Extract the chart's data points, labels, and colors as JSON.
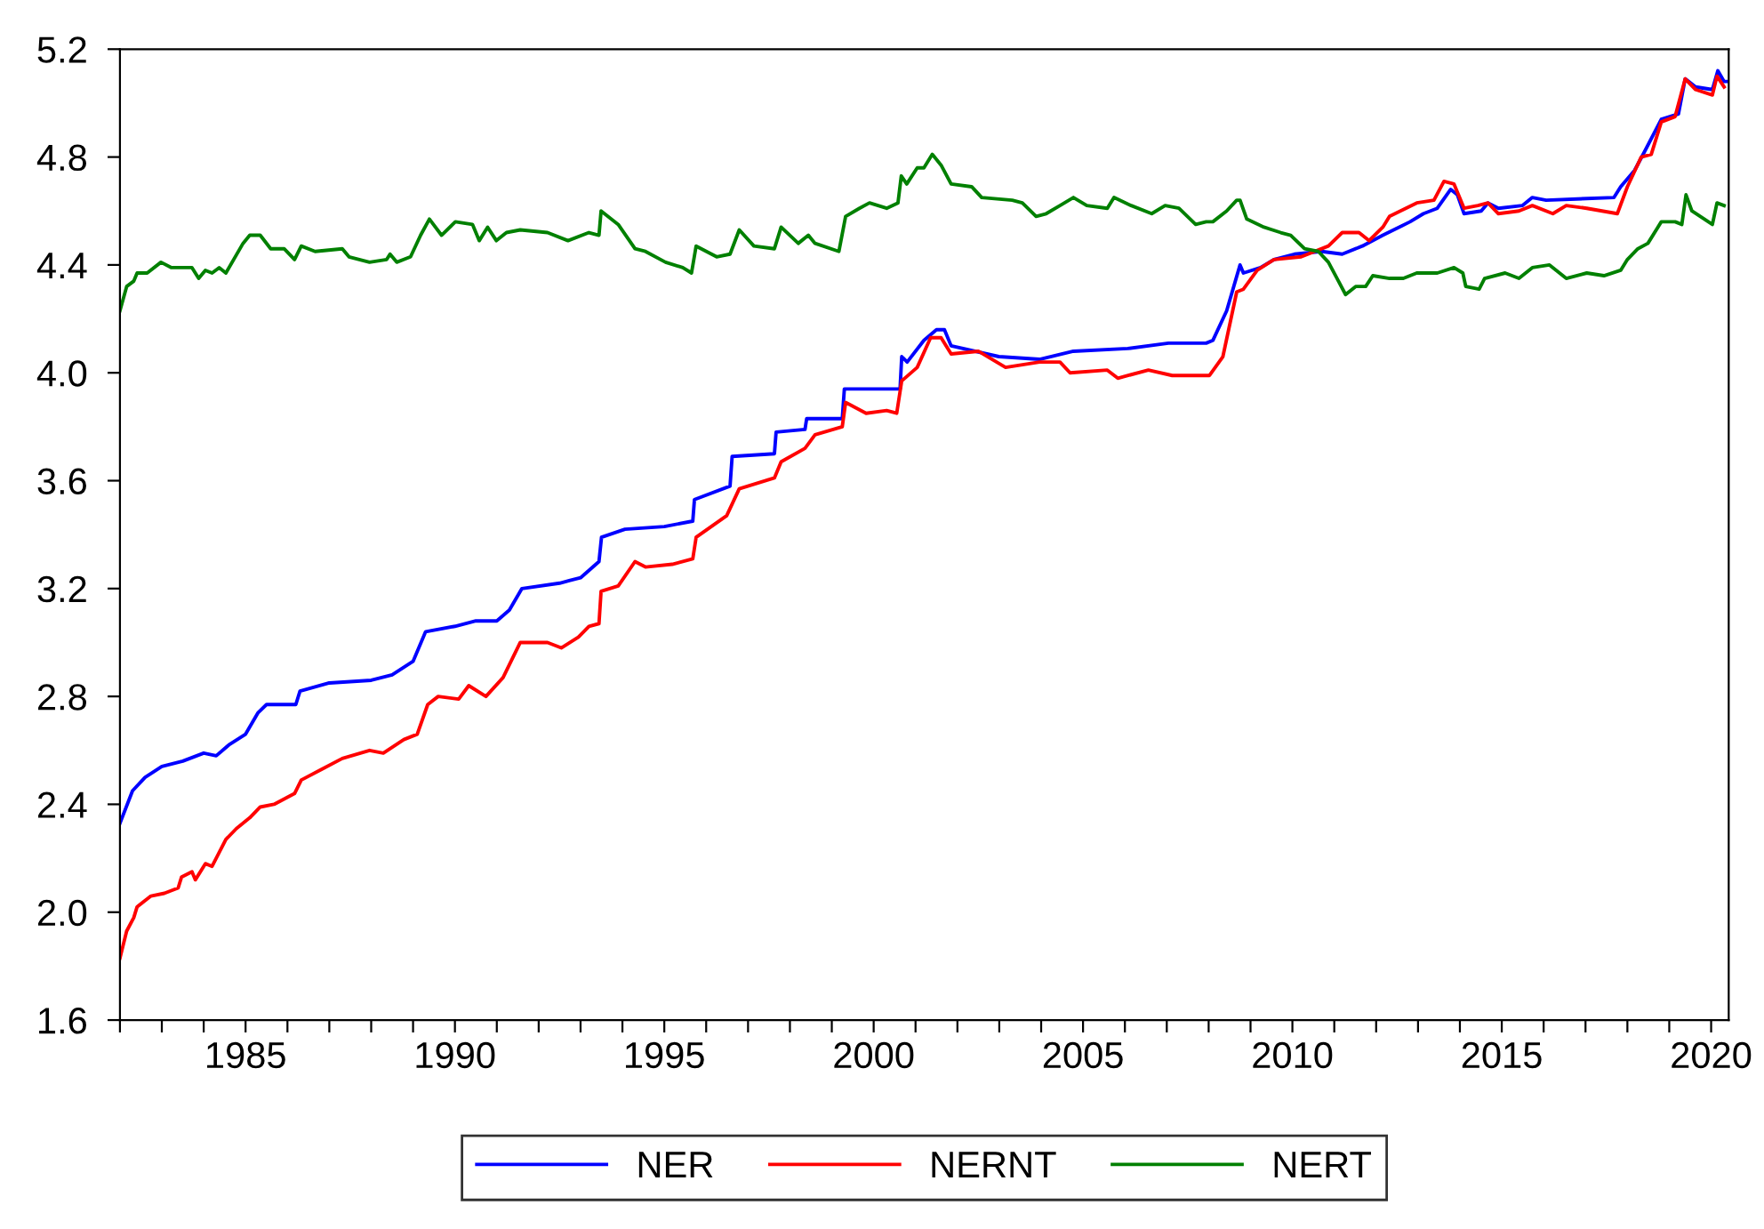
{
  "chart_data": {
    "type": "line",
    "legend": "bottom",
    "grid": false,
    "marker": "none",
    "line_style": "solid",
    "xlim": [
      1982.0,
      2020.42
    ],
    "ylim": [
      1.6,
      5.2
    ],
    "yticks": [
      1.6,
      {
        "value": 2,
        "label": "2.0"
      },
      2.4,
      2.8,
      3.2,
      3.6,
      {
        "value": 4,
        "label": "4.0"
      },
      4.4,
      4.8,
      5.2
    ],
    "xticks": [
      {
        "value": 1982,
        "label": null
      },
      {
        "value": 1983,
        "label": null
      },
      {
        "value": 1984,
        "label": null
      },
      1985,
      {
        "value": 1986,
        "label": null
      },
      {
        "value": 1987,
        "label": null
      },
      {
        "value": 1988,
        "label": null
      },
      {
        "value": 1989,
        "label": null
      },
      1990,
      {
        "value": 1991,
        "label": null
      },
      {
        "value": 1992,
        "label": null
      },
      {
        "value": 1993,
        "label": null
      },
      {
        "value": 1994,
        "label": null
      },
      1995,
      {
        "value": 1996,
        "label": null
      },
      {
        "value": 1997,
        "label": null
      },
      {
        "value": 1998,
        "label": null
      },
      {
        "value": 1999,
        "label": null
      },
      2000,
      {
        "value": 2001,
        "label": null
      },
      {
        "value": 2002,
        "label": null
      },
      {
        "value": 2003,
        "label": null
      },
      {
        "value": 2004,
        "label": null
      },
      2005,
      {
        "value": 2006,
        "label": null
      },
      {
        "value": 2007,
        "label": null
      },
      {
        "value": 2008,
        "label": null
      },
      {
        "value": 2009,
        "label": null
      },
      2010,
      {
        "value": 2011,
        "label": null
      },
      {
        "value": 2012,
        "label": null
      },
      {
        "value": 2013,
        "label": null
      },
      {
        "value": 2014,
        "label": null
      },
      2015,
      {
        "value": 2016,
        "label": null
      },
      {
        "value": 2017,
        "label": null
      },
      {
        "value": 2018,
        "label": null
      },
      {
        "value": 2019,
        "label": null
      },
      2020
    ],
    "series": [
      {
        "name": "NER",
        "color": "#0000ff",
        "x": [
          1982.0,
          1982.3,
          1982.6,
          1983.0,
          1983.5,
          1984.0,
          1984.3,
          1984.6,
          1985.0,
          1985.3,
          1985.5,
          1986.2,
          1986.3,
          1987.0,
          1988.0,
          1988.5,
          1989.0,
          1989.3,
          1990.0,
          1990.5,
          1991.0,
          1991.3,
          1991.6,
          1992.5,
          1992.75,
          1993.0,
          1993.44,
          1993.5,
          1994.06,
          1995.0,
          1995.68,
          1995.72,
          1996.57,
          1996.62,
          1997.63,
          1997.67,
          1998.36,
          1998.4,
          1999.25,
          1999.3,
          2000.63,
          2000.67,
          2000.8,
          2001.2,
          2001.5,
          2001.69,
          2001.85,
          2002.99,
          2003.96,
          2004.77,
          2006.07,
          2007.04,
          2007.94,
          2008.1,
          2008.43,
          2008.75,
          2008.83,
          2009.24,
          2009.56,
          2010.05,
          2010.7,
          2011.19,
          2011.67,
          2012.16,
          2012.81,
          2013.13,
          2013.46,
          2013.78,
          2013.94,
          2014.1,
          2014.51,
          2014.67,
          2014.92,
          2015.49,
          2015.73,
          2016.06,
          2017.68,
          2017.84,
          2018.17,
          2018.41,
          2018.81,
          2019.22,
          2019.38,
          2019.63,
          2020.03,
          2020.16,
          2020.31,
          2020.42
        ],
        "values": [
          2.33,
          2.45,
          2.5,
          2.54,
          2.56,
          2.59,
          2.58,
          2.62,
          2.66,
          2.74,
          2.77,
          2.77,
          2.82,
          2.85,
          2.86,
          2.88,
          2.93,
          3.04,
          3.06,
          3.08,
          3.08,
          3.12,
          3.2,
          3.22,
          3.23,
          3.24,
          3.3,
          3.39,
          3.42,
          3.43,
          3.45,
          3.53,
          3.58,
          3.69,
          3.7,
          3.78,
          3.79,
          3.83,
          3.83,
          3.94,
          3.94,
          4.06,
          4.04,
          4.12,
          4.16,
          4.16,
          4.1,
          4.06,
          4.05,
          4.08,
          4.09,
          4.11,
          4.11,
          4.12,
          4.23,
          4.4,
          4.37,
          4.39,
          4.42,
          4.44,
          4.45,
          4.44,
          4.47,
          4.51,
          4.56,
          4.59,
          4.61,
          4.68,
          4.66,
          4.59,
          4.6,
          4.63,
          4.61,
          4.62,
          4.65,
          4.64,
          4.65,
          4.69,
          4.75,
          4.82,
          4.94,
          4.96,
          5.09,
          5.06,
          5.05,
          5.12,
          5.08,
          5.08
        ]
      },
      {
        "name": "NERNT",
        "color": "#ff0000",
        "x": [
          1982.0,
          1982.16,
          1982.33,
          1982.41,
          1982.74,
          1983.06,
          1983.39,
          1983.47,
          1983.72,
          1983.8,
          1984.04,
          1984.2,
          1984.53,
          1984.78,
          1985.1,
          1985.35,
          1985.68,
          1986.17,
          1986.33,
          1986.82,
          1987.31,
          1987.96,
          1988.29,
          1988.78,
          1989.1,
          1989.35,
          1989.6,
          1990.09,
          1990.33,
          1990.74,
          1991.15,
          1991.56,
          1992.21,
          1992.54,
          1992.95,
          1993.2,
          1993.44,
          1993.49,
          1993.9,
          1994.3,
          1994.55,
          1995.19,
          1995.68,
          1995.76,
          1996.49,
          1996.79,
          1997.63,
          1997.79,
          1998.36,
          1998.6,
          1999.25,
          1999.33,
          1999.82,
          2000.31,
          2000.55,
          2000.67,
          2001.04,
          2001.36,
          2001.61,
          2001.85,
          2002.5,
          2003.15,
          2003.96,
          2004.45,
          2004.69,
          2005.58,
          2005.83,
          2006.56,
          2007.13,
          2008.02,
          2008.34,
          2008.67,
          2008.83,
          2009.16,
          2009.56,
          2010.21,
          2010.86,
          2011.19,
          2011.59,
          2011.83,
          2012.16,
          2012.32,
          2012.97,
          2013.38,
          2013.62,
          2013.86,
          2014.1,
          2014.43,
          2014.67,
          2014.92,
          2015.41,
          2015.73,
          2016.22,
          2016.54,
          2017.03,
          2017.76,
          2018.0,
          2018.33,
          2018.57,
          2018.81,
          2019.14,
          2019.38,
          2019.63,
          2020.03,
          2020.14,
          2020.31
        ],
        "values": [
          1.83,
          1.93,
          1.98,
          2.02,
          2.06,
          2.07,
          2.09,
          2.13,
          2.15,
          2.12,
          2.18,
          2.17,
          2.27,
          2.31,
          2.35,
          2.39,
          2.4,
          2.44,
          2.49,
          2.53,
          2.57,
          2.6,
          2.59,
          2.64,
          2.66,
          2.77,
          2.8,
          2.79,
          2.84,
          2.8,
          2.87,
          3.0,
          3.0,
          2.98,
          3.02,
          3.06,
          3.07,
          3.19,
          3.21,
          3.3,
          3.28,
          3.29,
          3.31,
          3.39,
          3.47,
          3.57,
          3.61,
          3.67,
          3.72,
          3.77,
          3.8,
          3.89,
          3.85,
          3.86,
          3.85,
          3.97,
          4.02,
          4.13,
          4.13,
          4.07,
          4.08,
          4.02,
          4.04,
          4.04,
          4.0,
          4.01,
          3.98,
          4.01,
          3.99,
          3.99,
          4.06,
          4.3,
          4.31,
          4.38,
          4.42,
          4.43,
          4.47,
          4.52,
          4.52,
          4.49,
          4.54,
          4.58,
          4.63,
          4.64,
          4.71,
          4.7,
          4.61,
          4.62,
          4.63,
          4.59,
          4.6,
          4.62,
          4.59,
          4.62,
          4.61,
          4.59,
          4.69,
          4.8,
          4.81,
          4.93,
          4.95,
          5.09,
          5.05,
          5.03,
          5.1,
          5.06
        ]
      },
      {
        "name": "NERT",
        "color": "#008000",
        "x": [
          1982.0,
          1982.16,
          1982.33,
          1982.41,
          1982.65,
          1982.98,
          1983.23,
          1983.72,
          1983.88,
          1984.04,
          1984.2,
          1984.37,
          1984.53,
          1984.94,
          1985.1,
          1985.35,
          1985.6,
          1985.92,
          1986.17,
          1986.33,
          1986.66,
          1987.31,
          1987.47,
          1987.96,
          1988.37,
          1988.45,
          1988.61,
          1988.94,
          1989.18,
          1989.39,
          1989.68,
          1990.01,
          1990.42,
          1990.58,
          1990.78,
          1990.99,
          1991.23,
          1991.56,
          1992.21,
          1992.7,
          1993.2,
          1993.44,
          1993.49,
          1993.9,
          1994.3,
          1994.55,
          1995.03,
          1995.44,
          1995.65,
          1995.76,
          1996.25,
          1996.57,
          1996.79,
          1997.14,
          1997.63,
          1997.79,
          1998.2,
          1998.44,
          1998.6,
          1999.17,
          1999.33,
          1999.66,
          1999.9,
          2000.31,
          2000.58,
          2000.66,
          2000.79,
          2001.04,
          2001.2,
          2001.4,
          2001.61,
          2001.85,
          2002.34,
          2002.58,
          2003.31,
          2003.55,
          2003.88,
          2004.12,
          2004.45,
          2004.77,
          2005.09,
          2005.58,
          2005.74,
          2006.15,
          2006.64,
          2006.96,
          2007.29,
          2007.69,
          2007.94,
          2008.1,
          2008.43,
          2008.67,
          2008.75,
          2008.91,
          2009.32,
          2009.72,
          2009.96,
          2010.29,
          2010.62,
          2010.86,
          2011.1,
          2011.27,
          2011.51,
          2011.75,
          2011.92,
          2012.32,
          2012.65,
          2012.97,
          2013.46,
          2013.86,
          2014.07,
          2014.14,
          2014.46,
          2014.59,
          2015.08,
          2015.41,
          2015.73,
          2016.14,
          2016.54,
          2017.03,
          2017.44,
          2017.84,
          2018.0,
          2018.25,
          2018.49,
          2018.81,
          2019.14,
          2019.3,
          2019.4,
          2019.54,
          2020.03,
          2020.14,
          2020.31
        ],
        "values": [
          4.23,
          4.32,
          4.34,
          4.37,
          4.37,
          4.41,
          4.39,
          4.39,
          4.35,
          4.38,
          4.37,
          4.39,
          4.37,
          4.48,
          4.51,
          4.51,
          4.46,
          4.46,
          4.42,
          4.47,
          4.45,
          4.46,
          4.43,
          4.41,
          4.42,
          4.44,
          4.41,
          4.43,
          4.51,
          4.57,
          4.51,
          4.56,
          4.55,
          4.49,
          4.54,
          4.49,
          4.52,
          4.53,
          4.52,
          4.49,
          4.52,
          4.51,
          4.6,
          4.55,
          4.46,
          4.45,
          4.41,
          4.39,
          4.37,
          4.47,
          4.43,
          4.44,
          4.53,
          4.47,
          4.46,
          4.54,
          4.48,
          4.51,
          4.48,
          4.45,
          4.58,
          4.61,
          4.63,
          4.61,
          4.63,
          4.73,
          4.7,
          4.76,
          4.76,
          4.81,
          4.77,
          4.7,
          4.69,
          4.65,
          4.64,
          4.63,
          4.58,
          4.59,
          4.62,
          4.65,
          4.62,
          4.61,
          4.65,
          4.62,
          4.59,
          4.62,
          4.61,
          4.55,
          4.56,
          4.56,
          4.6,
          4.64,
          4.64,
          4.57,
          4.54,
          4.52,
          4.51,
          4.46,
          4.45,
          4.41,
          4.34,
          4.29,
          4.32,
          4.32,
          4.36,
          4.35,
          4.35,
          4.37,
          4.37,
          4.39,
          4.37,
          4.32,
          4.31,
          4.35,
          4.37,
          4.35,
          4.39,
          4.4,
          4.35,
          4.37,
          4.36,
          4.38,
          4.42,
          4.46,
          4.48,
          4.56,
          4.56,
          4.55,
          4.66,
          4.6,
          4.55,
          4.63,
          4.62
        ]
      }
    ]
  }
}
